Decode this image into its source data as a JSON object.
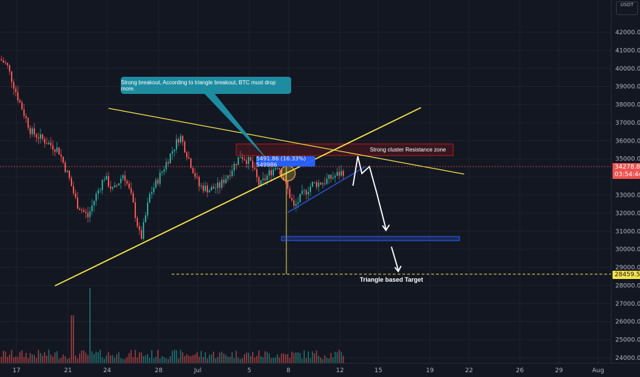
{
  "chart_data": {
    "type": "candlestick",
    "symbol_currency": "USDT",
    "x_ticks": [
      "17",
      "21",
      "24",
      "28",
      "Jul",
      "5",
      "8",
      "12",
      "15",
      "19",
      "22",
      "26",
      "29",
      "Aug"
    ],
    "y_ticks": [
      "24000.00",
      "25000.00",
      "26000.00",
      "27000.00",
      "28000.00",
      "29000.00",
      "30000.00",
      "31000.00",
      "32000.00",
      "33000.00",
      "34000.00",
      "35000.00",
      "36000.00",
      "37000.00",
      "38000.00",
      "39000.00",
      "40000.00",
      "41000.00",
      "42000.00"
    ],
    "ylim": [
      23800,
      42800
    ],
    "current_price": "34278.81",
    "countdown": "03:54:44",
    "target_price": "28459.54",
    "target_label": "Triangle based Target",
    "resistance_label": "Strong cluster Resistance zone",
    "callout_text": "Strong breakout, According to triangle breakout, BTC must drop more.",
    "measure_text": "5491.86 (16.33%) 549986",
    "colors": {
      "up": "#26a69a",
      "down": "#ef5350",
      "trendline": "#f7e34a",
      "support": "#2962ff",
      "resistance_zone": "#b71c1c",
      "background": "#131722"
    }
  }
}
